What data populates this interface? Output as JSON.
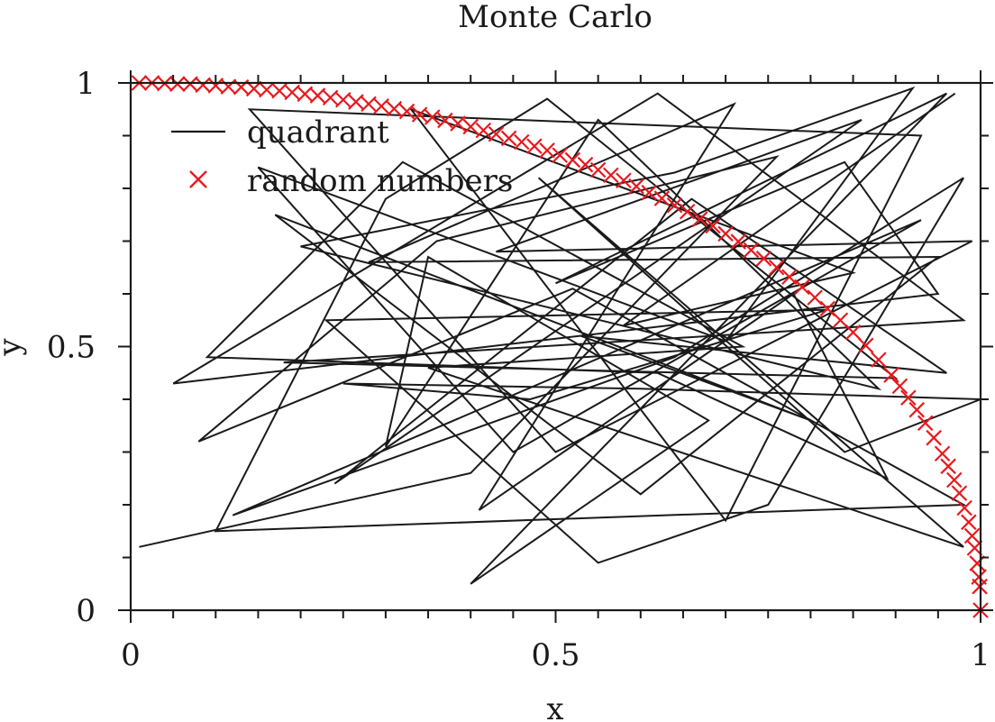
{
  "chart_data": {
    "type": "line",
    "title": "Monte Carlo",
    "xlabel": "x",
    "ylabel": "y",
    "xlim": [
      0,
      1
    ],
    "ylim": [
      0,
      1
    ],
    "x_ticks": [
      0,
      0.5,
      1
    ],
    "x_tick_labels": [
      "0",
      "0.5",
      "1"
    ],
    "y_ticks": [
      0,
      0.5,
      1
    ],
    "y_tick_labels": [
      "0",
      "0.5",
      "1"
    ],
    "grid": false,
    "legend_position": "top-left",
    "colors": {
      "quadrant": "#1a1a1a",
      "random_numbers": "#e8191e"
    },
    "series": [
      {
        "name": "quadrant",
        "style": "line",
        "points": [
          [
            0.01,
            0.12
          ],
          [
            0.4,
            0.26
          ],
          [
            0.76,
            0.86
          ],
          [
            0.36,
            0.7
          ],
          [
            0.08,
            0.32
          ],
          [
            0.52,
            0.61
          ],
          [
            0.98,
            0.2
          ],
          [
            0.1,
            0.15
          ],
          [
            0.3,
            0.78
          ],
          [
            0.49,
            0.97
          ],
          [
            0.9,
            0.44
          ],
          [
            0.18,
            0.47
          ],
          [
            0.98,
            0.55
          ],
          [
            0.62,
            0.98
          ],
          [
            0.05,
            0.43
          ],
          [
            0.95,
            0.6
          ],
          [
            0.84,
            0.85
          ],
          [
            0.5,
            0.62
          ],
          [
            0.96,
            0.98
          ],
          [
            0.4,
            0.05
          ],
          [
            0.68,
            0.36
          ],
          [
            0.35,
            0.67
          ],
          [
            0.3,
            0.31
          ],
          [
            0.55,
            0.93
          ],
          [
            0.88,
            0.42
          ],
          [
            0.2,
            0.69
          ],
          [
            0.64,
            0.83
          ],
          [
            0.92,
            0.99
          ],
          [
            0.7,
            0.51
          ],
          [
            0.15,
            0.84
          ],
          [
            0.45,
            0.3
          ],
          [
            0.93,
            0.74
          ],
          [
            0.12,
            0.18
          ],
          [
            0.64,
            0.48
          ],
          [
            0.98,
            0.82
          ],
          [
            0.75,
            0.2
          ],
          [
            0.55,
            0.09
          ],
          [
            0.23,
            0.55
          ],
          [
            0.82,
            0.57
          ],
          [
            0.47,
            0.4
          ],
          [
            0.25,
            0.43
          ],
          [
            0.6,
            0.42
          ],
          [
            1.0,
            0.4
          ],
          [
            0.84,
            0.3
          ],
          [
            0.48,
            0.82
          ],
          [
            0.98,
            0.12
          ],
          [
            0.35,
            0.46
          ],
          [
            0.72,
            0.5
          ],
          [
            0.32,
            0.85
          ],
          [
            0.09,
            0.48
          ],
          [
            0.62,
            0.45
          ],
          [
            0.89,
            0.25
          ],
          [
            0.78,
            0.6
          ],
          [
            0.41,
            0.19
          ],
          [
            0.71,
            0.96
          ],
          [
            0.28,
            0.66
          ],
          [
            0.95,
            0.67
          ],
          [
            0.6,
            0.22
          ],
          [
            0.17,
            0.75
          ],
          [
            0.8,
            0.36
          ],
          [
            0.53,
            0.52
          ],
          [
            0.96,
            0.45
          ],
          [
            0.66,
            0.78
          ],
          [
            0.24,
            0.24
          ],
          [
            0.86,
            0.93
          ],
          [
            0.43,
            0.68
          ],
          [
            0.99,
            0.7
          ],
          [
            0.5,
            0.3
          ],
          [
            0.14,
            0.95
          ],
          [
            0.93,
            0.9
          ],
          [
            0.7,
            0.17
          ],
          [
            0.33,
            0.95
          ],
          [
            0.85,
            0.64
          ],
          [
            0.58,
            0.54
          ],
          [
            0.97,
            0.98
          ]
        ]
      },
      {
        "name": "random numbers",
        "style": "marker-x",
        "x": [
          0.01,
          0.025,
          0.04,
          0.055,
          0.07,
          0.085,
          0.1,
          0.115,
          0.13,
          0.145,
          0.16,
          0.175,
          0.19,
          0.205,
          0.22,
          0.235,
          0.25,
          0.265,
          0.28,
          0.295,
          0.31,
          0.325,
          0.34,
          0.355,
          0.37,
          0.385,
          0.4,
          0.415,
          0.43,
          0.445,
          0.46,
          0.475,
          0.49,
          0.505,
          0.52,
          0.535,
          0.55,
          0.565,
          0.58,
          0.595,
          0.61,
          0.625,
          0.64,
          0.655,
          0.67,
          0.685,
          0.7,
          0.715,
          0.73,
          0.745,
          0.76,
          0.775,
          0.79,
          0.805,
          0.82,
          0.835,
          0.85,
          0.865,
          0.88,
          0.895,
          0.905,
          0.915,
          0.925,
          0.935,
          0.945,
          0.955,
          0.962,
          0.969,
          0.975,
          0.981,
          0.986,
          0.99,
          0.993,
          0.996,
          0.998,
          0.999,
          1.0
        ],
        "y": [
          1.0,
          1.0,
          0.999,
          0.998,
          0.998,
          0.996,
          0.995,
          0.993,
          0.992,
          0.989,
          0.987,
          0.985,
          0.982,
          0.979,
          0.976,
          0.972,
          0.968,
          0.964,
          0.96,
          0.956,
          0.951,
          0.946,
          0.94,
          0.935,
          0.929,
          0.923,
          0.917,
          0.91,
          0.903,
          0.895,
          0.888,
          0.88,
          0.872,
          0.863,
          0.854,
          0.845,
          0.835,
          0.825,
          0.815,
          0.804,
          0.792,
          0.781,
          0.768,
          0.756,
          0.742,
          0.729,
          0.714,
          0.699,
          0.683,
          0.667,
          0.65,
          0.632,
          0.613,
          0.593,
          0.572,
          0.55,
          0.527,
          0.502,
          0.475,
          0.446,
          0.425,
          0.403,
          0.38,
          0.355,
          0.327,
          0.297,
          0.273,
          0.247,
          0.222,
          0.194,
          0.167,
          0.141,
          0.118,
          0.089,
          0.063,
          0.045,
          0.0
        ]
      }
    ]
  }
}
